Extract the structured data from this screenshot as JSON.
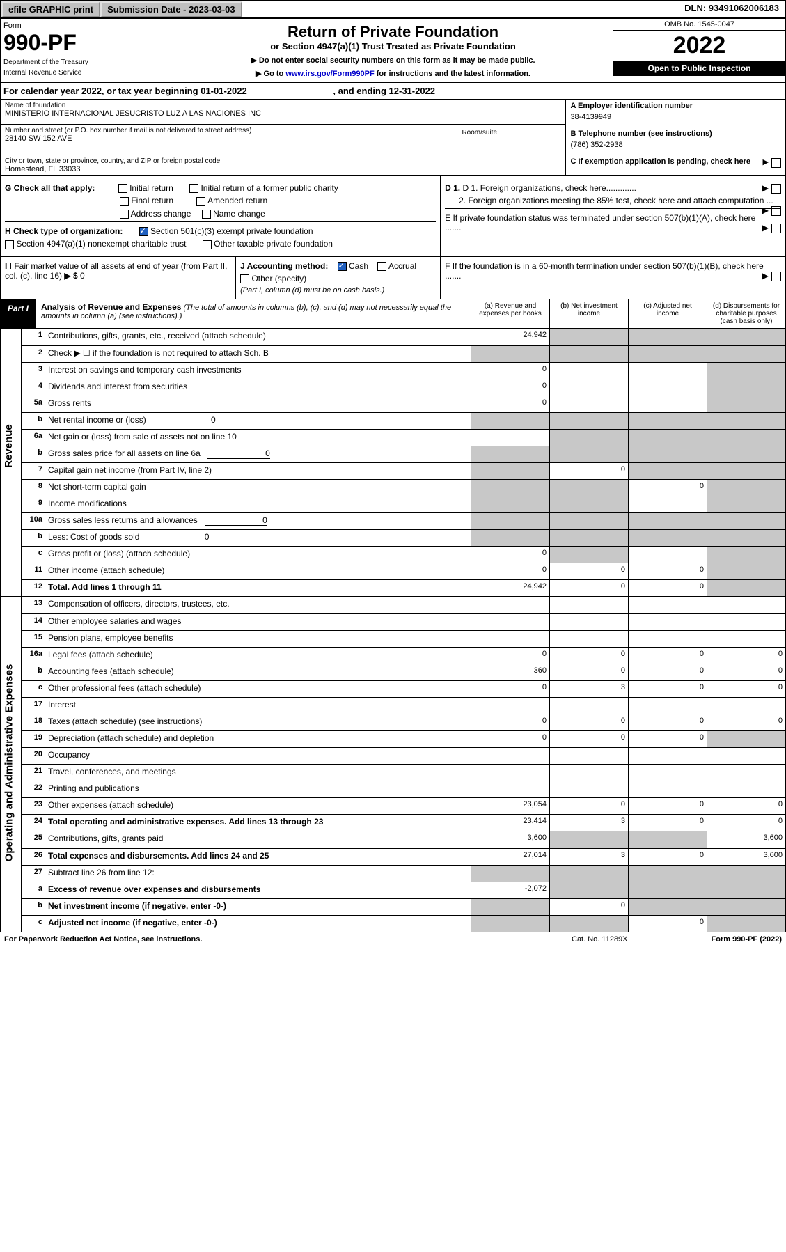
{
  "topbar": {
    "efile": "efile GRAPHIC print",
    "subdate_label": "Submission Date - 2023-03-03",
    "dln": "DLN: 93491062006183"
  },
  "formhead": {
    "formword": "Form",
    "formnum": "990-PF",
    "dept1": "Department of the Treasury",
    "dept2": "Internal Revenue Service",
    "title": "Return of Private Foundation",
    "sub": "or Section 4947(a)(1) Trust Treated as Private Foundation",
    "small1": "▶ Do not enter social security numbers on this form as it may be made public.",
    "small2_a": "▶ Go to ",
    "small2_link": "www.irs.gov/Form990PF",
    "small2_b": " for instructions and the latest information.",
    "omb": "OMB No. 1545-0047",
    "year": "2022",
    "open": "Open to Public Inspection"
  },
  "calyear": {
    "a": "For calendar year 2022, or tax year beginning 01-01-2022",
    "b": ", and ending 12-31-2022"
  },
  "id": {
    "name_lbl": "Name of foundation",
    "name": "MINISTERIO INTERNACIONAL JESUCRISTO LUZ A LAS NACIONES INC",
    "addr_lbl": "Number and street (or P.O. box number if mail is not delivered to street address)",
    "addr": "28140 SW 152 AVE",
    "room_lbl": "Room/suite",
    "city_lbl": "City or town, state or province, country, and ZIP or foreign postal code",
    "city": "Homestead, FL  33033",
    "A_lbl": "A Employer identification number",
    "A_val": "38-4139949",
    "B_lbl": "B Telephone number (see instructions)",
    "B_val": "(786) 352-2938",
    "C_lbl": "C If exemption application is pending, check here"
  },
  "G": {
    "label": "G Check all that apply:",
    "o1": "Initial return",
    "o2": "Initial return of a former public charity",
    "o3": "Final return",
    "o4": "Amended return",
    "o5": "Address change",
    "o6": "Name change"
  },
  "H": {
    "label": "H Check type of organization:",
    "o1": "Section 501(c)(3) exempt private foundation",
    "o2": "Section 4947(a)(1) nonexempt charitable trust",
    "o3": "Other taxable private foundation"
  },
  "D": {
    "d1": "D 1. Foreign organizations, check here.............",
    "d2": "2. Foreign organizations meeting the 85% test, check here and attach computation ..."
  },
  "E": "E  If private foundation status was terminated under section 507(b)(1)(A), check here .......",
  "I": {
    "label": "I Fair market value of all assets at end of year (from Part II, col. (c), line 16)",
    "arrow": "▶ $",
    "val": "0"
  },
  "J": {
    "label": "J Accounting method:",
    "o1": "Cash",
    "o2": "Accrual",
    "o3": "Other (specify)",
    "note": "(Part I, column (d) must be on cash basis.)"
  },
  "F": "F  If the foundation is in a 60-month termination under section 507(b)(1)(B), check here .......",
  "part1": {
    "label": "Part I",
    "title": "Analysis of Revenue and Expenses",
    "desc": " (The total of amounts in columns (b), (c), and (d) may not necessarily equal the amounts in column (a) (see instructions).)",
    "ca": "(a) Revenue and expenses per books",
    "cb": "(b) Net investment income",
    "cc": "(c) Adjusted net income",
    "cd": "(d) Disbursements for charitable purposes (cash basis only)"
  },
  "side": {
    "rev": "Revenue",
    "opex": "Operating and Administrative Expenses"
  },
  "lines": {
    "1": {
      "n": "1",
      "d": "Contributions, gifts, grants, etc., received (attach schedule)",
      "a": "24,942"
    },
    "2": {
      "n": "2",
      "d": "Check ▶ ☐ if the foundation is not required to attach Sch. B"
    },
    "3": {
      "n": "3",
      "d": "Interest on savings and temporary cash investments",
      "a": "0"
    },
    "4": {
      "n": "4",
      "d": "Dividends and interest from securities",
      "a": "0"
    },
    "5a": {
      "n": "5a",
      "d": "Gross rents",
      "a": "0"
    },
    "5b": {
      "n": "b",
      "d": "Net rental income or (loss)",
      "inline": "0"
    },
    "6a": {
      "n": "6a",
      "d": "Net gain or (loss) from sale of assets not on line 10"
    },
    "6b": {
      "n": "b",
      "d": "Gross sales price for all assets on line 6a",
      "inline": "0"
    },
    "7": {
      "n": "7",
      "d": "Capital gain net income (from Part IV, line 2)",
      "b": "0"
    },
    "8": {
      "n": "8",
      "d": "Net short-term capital gain",
      "c": "0"
    },
    "9": {
      "n": "9",
      "d": "Income modifications"
    },
    "10a": {
      "n": "10a",
      "d": "Gross sales less returns and allowances",
      "inline": "0"
    },
    "10b": {
      "n": "b",
      "d": "Less: Cost of goods sold",
      "inline": "0"
    },
    "10c": {
      "n": "c",
      "d": "Gross profit or (loss) (attach schedule)",
      "a": "0"
    },
    "11": {
      "n": "11",
      "d": "Other income (attach schedule)",
      "a": "0",
      "b": "0",
      "c": "0"
    },
    "12": {
      "n": "12",
      "d": "Total. Add lines 1 through 11",
      "a": "24,942",
      "b": "0",
      "c": "0"
    },
    "13": {
      "n": "13",
      "d": "Compensation of officers, directors, trustees, etc."
    },
    "14": {
      "n": "14",
      "d": "Other employee salaries and wages"
    },
    "15": {
      "n": "15",
      "d": "Pension plans, employee benefits"
    },
    "16a": {
      "n": "16a",
      "d": "Legal fees (attach schedule)",
      "a": "0",
      "b": "0",
      "c": "0",
      "dd": "0"
    },
    "16b": {
      "n": "b",
      "d": "Accounting fees (attach schedule)",
      "a": "360",
      "b": "0",
      "c": "0",
      "dd": "0"
    },
    "16c": {
      "n": "c",
      "d": "Other professional fees (attach schedule)",
      "a": "0",
      "b": "3",
      "c": "0",
      "dd": "0"
    },
    "17": {
      "n": "17",
      "d": "Interest"
    },
    "18": {
      "n": "18",
      "d": "Taxes (attach schedule) (see instructions)",
      "a": "0",
      "b": "0",
      "c": "0",
      "dd": "0"
    },
    "19": {
      "n": "19",
      "d": "Depreciation (attach schedule) and depletion",
      "a": "0",
      "b": "0",
      "c": "0"
    },
    "20": {
      "n": "20",
      "d": "Occupancy"
    },
    "21": {
      "n": "21",
      "d": "Travel, conferences, and meetings"
    },
    "22": {
      "n": "22",
      "d": "Printing and publications"
    },
    "23": {
      "n": "23",
      "d": "Other expenses (attach schedule)",
      "a": "23,054",
      "b": "0",
      "c": "0",
      "dd": "0"
    },
    "24": {
      "n": "24",
      "d": "Total operating and administrative expenses. Add lines 13 through 23",
      "a": "23,414",
      "b": "3",
      "c": "0",
      "dd": "0"
    },
    "25": {
      "n": "25",
      "d": "Contributions, gifts, grants paid",
      "a": "3,600",
      "dd": "3,600"
    },
    "26": {
      "n": "26",
      "d": "Total expenses and disbursements. Add lines 24 and 25",
      "a": "27,014",
      "b": "3",
      "c": "0",
      "dd": "3,600"
    },
    "27": {
      "n": "27",
      "d": "Subtract line 26 from line 12:"
    },
    "27a": {
      "n": "a",
      "d": "Excess of revenue over expenses and disbursements",
      "a": "-2,072"
    },
    "27b": {
      "n": "b",
      "d": "Net investment income (if negative, enter -0-)",
      "b": "0"
    },
    "27c": {
      "n": "c",
      "d": "Adjusted net income (if negative, enter -0-)",
      "c": "0"
    }
  },
  "footer": {
    "f1": "For Paperwork Reduction Act Notice, see instructions.",
    "f2": "Cat. No. 11289X",
    "f3": "Form 990-PF (2022)"
  }
}
